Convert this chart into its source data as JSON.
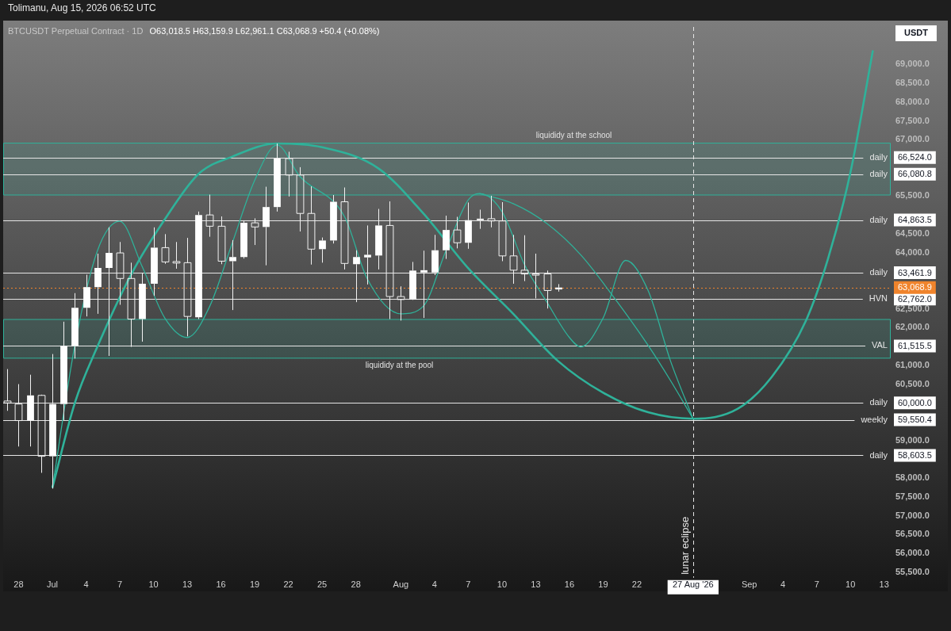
{
  "chart_data": {
    "type": "candlestick",
    "title": "BTCUSDT Perpetual Contract · 1D",
    "subtitle": "O63,018.5 H63,159.9 L62,961.1 C63,068.9 +50.4 (+0.08%)",
    "ylabel": "USDT",
    "annotations": [
      "Tolimanu, Aug 15, 2026 06:52 UTC",
      "66,524.0",
      "66,080.8",
      "64,863.5",
      "63,461.9",
      "62,762.0",
      "61,515.5",
      "60,000.0",
      "59,550.4",
      "58,603.5",
      "63,068.9"
    ],
    "x": [
      "2026-06-27",
      "2026-06-28",
      "2026-06-29",
      "2026-06-30",
      "2026-07-01",
      "2026-07-02",
      "2026-07-03",
      "2026-07-04",
      "2026-07-05",
      "2026-07-06",
      "2026-07-07",
      "2026-07-08",
      "2026-07-09",
      "2026-07-10",
      "2026-07-11",
      "2026-07-12",
      "2026-07-13",
      "2026-07-14",
      "2026-07-15",
      "2026-07-16",
      "2026-07-17",
      "2026-07-18",
      "2026-07-19",
      "2026-07-20",
      "2026-07-21",
      "2026-07-22",
      "2026-07-23",
      "2026-07-24",
      "2026-07-25",
      "2026-07-26",
      "2026-07-27",
      "2026-07-28",
      "2026-07-29",
      "2026-07-30",
      "2026-07-31",
      "2026-08-01",
      "2026-08-02",
      "2026-08-03",
      "2026-08-04",
      "2026-08-05",
      "2026-08-06",
      "2026-08-07",
      "2026-08-08",
      "2026-08-09",
      "2026-08-10",
      "2026-08-11",
      "2026-08-12",
      "2026-08-13",
      "2026-08-14",
      "2026-08-15"
    ],
    "ohlc": [
      [
        60050,
        60900,
        59790,
        60000
      ],
      [
        59970,
        60500,
        58840,
        59530
      ],
      [
        59530,
        60750,
        58840,
        60200
      ],
      [
        60200,
        60220,
        58140,
        58580
      ],
      [
        58580,
        61300,
        57720,
        59970
      ],
      [
        59970,
        62160,
        59540,
        61510
      ],
      [
        61510,
        62920,
        61180,
        62530
      ],
      [
        62530,
        63410,
        62300,
        63080
      ],
      [
        63080,
        63970,
        62370,
        63590
      ],
      [
        63590,
        64670,
        61250,
        63990
      ],
      [
        63990,
        64280,
        62610,
        63310
      ],
      [
        63310,
        63730,
        61490,
        62230
      ],
      [
        62230,
        63450,
        61630,
        63170
      ],
      [
        63170,
        64670,
        62850,
        64130
      ],
      [
        64130,
        64490,
        63700,
        63750
      ],
      [
        63760,
        64280,
        63570,
        63720
      ],
      [
        63730,
        64390,
        61770,
        62300
      ],
      [
        62280,
        65090,
        62230,
        65000
      ],
      [
        65000,
        65540,
        64420,
        64700
      ],
      [
        64700,
        64960,
        63690,
        63770
      ],
      [
        63770,
        64330,
        62470,
        63880
      ],
      [
        63880,
        64840,
        63840,
        64790
      ],
      [
        64790,
        64910,
        64200,
        64680
      ],
      [
        64680,
        65750,
        63660,
        65210
      ],
      [
        65210,
        66900,
        65090,
        66500
      ],
      [
        66500,
        66680,
        65490,
        66060
      ],
      [
        66060,
        66270,
        64560,
        65040
      ],
      [
        65040,
        65760,
        63680,
        64090
      ],
      [
        64090,
        64400,
        63730,
        64320
      ],
      [
        64320,
        65530,
        64240,
        65350
      ],
      [
        65350,
        65730,
        63550,
        63710
      ],
      [
        63690,
        64060,
        62680,
        63880
      ],
      [
        63870,
        64720,
        63150,
        63940
      ],
      [
        63920,
        65160,
        63550,
        64720
      ],
      [
        64720,
        65360,
        62230,
        62830
      ],
      [
        62830,
        63100,
        62190,
        62750
      ],
      [
        62750,
        63750,
        62740,
        63520
      ],
      [
        63470,
        64050,
        62260,
        63530
      ],
      [
        63470,
        64470,
        63400,
        64060
      ],
      [
        64060,
        64980,
        63830,
        64600
      ],
      [
        64600,
        64950,
        64110,
        64260
      ],
      [
        64260,
        65330,
        64100,
        64860
      ],
      [
        64860,
        65140,
        64630,
        64900
      ],
      [
        64900,
        65510,
        64670,
        64840
      ],
      [
        64840,
        65340,
        63770,
        63910
      ],
      [
        63910,
        64470,
        63170,
        63530
      ],
      [
        63530,
        64460,
        63240,
        63430
      ],
      [
        63430,
        63970,
        62780,
        63410
      ],
      [
        63430,
        63520,
        62510,
        62990
      ],
      [
        63018.5,
        63159.9,
        62961.1,
        63068.9
      ]
    ],
    "series": [
      {
        "type": "line",
        "color": "#2fb29a",
        "x": [
          "2026-07-01",
          "2026-07-03",
          "2026-07-05",
          "2026-07-08",
          "2026-07-11",
          "2026-07-14",
          "2026-07-17",
          "2026-07-21",
          "2026-07-25",
          "2026-07-30",
          "2026-08-03",
          "2026-08-07",
          "2026-08-11",
          "2026-08-15",
          "2026-08-19",
          "2026-08-23",
          "2026-08-27",
          "2026-08-31",
          "2026-09-03",
          "2026-09-06",
          "2026-09-08",
          "2026-09-10",
          "2026-09-12"
        ],
        "values": [
          57740,
          60000,
          61490,
          63410,
          64880,
          66090,
          66550,
          66900,
          66800,
          66240,
          65040,
          63580,
          62370,
          61110,
          60270,
          59750,
          59580,
          59850,
          60690,
          62160,
          63830,
          66130,
          69380
        ]
      },
      {
        "type": "line",
        "color": "#2fb29a",
        "x": [
          "2026-07-01",
          "2026-07-03",
          "2026-07-05",
          "2026-07-07",
          "2026-07-09",
          "2026-07-11",
          "2026-07-13",
          "2026-07-15",
          "2026-07-17",
          "2026-07-19",
          "2026-07-21",
          "2026-07-23",
          "2026-07-27",
          "2026-07-29",
          "2026-08-01",
          "2026-08-03",
          "2026-08-05",
          "2026-08-07",
          "2026-08-08",
          "2026-08-10",
          "2026-08-12",
          "2026-08-14",
          "2026-08-16",
          "2026-08-17",
          "2026-08-19",
          "2026-08-21",
          "2026-08-23",
          "2026-08-25",
          "2026-08-27"
        ],
        "values": [
          57740,
          61530,
          64040,
          64830,
          63620,
          62260,
          61740,
          62570,
          64250,
          65920,
          66860,
          66030,
          64950,
          63310,
          62370,
          62570,
          64040,
          65400,
          65570,
          65090,
          63680,
          62680,
          61740,
          61490,
          62260,
          63790,
          62990,
          61110,
          59580
        ]
      },
      {
        "type": "line",
        "color": "#2fb29a",
        "x": [
          "2026-08-08",
          "2026-08-11",
          "2026-08-14",
          "2026-08-17",
          "2026-08-20",
          "2026-08-23",
          "2026-08-25",
          "2026-08-27"
        ],
        "values": [
          65570,
          65300,
          64770,
          63940,
          62790,
          61530,
          60590,
          59580
        ]
      }
    ],
    "xlim": [
      "2026-06-26T15:00",
      "2026-09-13T14:00"
    ],
    "xticks": [
      {
        "value": "2026-06-28",
        "label": "28"
      },
      {
        "value": "2026-07-01",
        "label": "Jul"
      },
      {
        "value": "2026-07-04",
        "label": "4"
      },
      {
        "value": "2026-07-07",
        "label": "7"
      },
      {
        "value": "2026-07-10",
        "label": "10"
      },
      {
        "value": "2026-07-13",
        "label": "13"
      },
      {
        "value": "2026-07-16",
        "label": "16"
      },
      {
        "value": "2026-07-19",
        "label": "19"
      },
      {
        "value": "2026-07-22",
        "label": "22"
      },
      {
        "value": "2026-07-25",
        "label": "25"
      },
      {
        "value": "2026-07-28",
        "label": "28"
      },
      {
        "value": "2026-08-01",
        "label": "Aug"
      },
      {
        "value": "2026-08-04",
        "label": "4"
      },
      {
        "value": "2026-08-07",
        "label": "7"
      },
      {
        "value": "2026-08-10",
        "label": "10"
      },
      {
        "value": "2026-08-13",
        "label": "13"
      },
      {
        "value": "2026-08-16",
        "label": "16"
      },
      {
        "value": "2026-08-19",
        "label": "19"
      },
      {
        "value": "2026-08-22",
        "label": "22"
      },
      {
        "value": "2026-08-27",
        "label": "27 Aug '26"
      },
      {
        "value": "2026-09-01",
        "label": "Sep"
      },
      {
        "value": "2026-09-04",
        "label": "4"
      },
      {
        "value": "2026-09-07",
        "label": "7"
      },
      {
        "value": "2026-09-10",
        "label": "10"
      },
      {
        "value": "2026-09-13",
        "label": "13"
      }
    ],
    "ylim": [
      55350,
      70000
    ],
    "yticks": [
      {
        "value": 55500,
        "label": "55,500.0"
      },
      {
        "value": 56000,
        "label": "56,000.0"
      },
      {
        "value": 56500,
        "label": "56,500.0"
      },
      {
        "value": 57000,
        "label": "57,000.0"
      },
      {
        "value": 57500,
        "label": "57,500.0"
      },
      {
        "value": 58000,
        "label": "58,000.0"
      },
      {
        "value": 59000,
        "label": "59,000.0"
      },
      {
        "value": 60500,
        "label": "60,500.0"
      },
      {
        "value": 61000,
        "label": "61,000.0"
      },
      {
        "value": 62000,
        "label": "62,000.0"
      },
      {
        "value": 62500,
        "label": "62,500.0"
      },
      {
        "value": 64000,
        "label": "64,000.0"
      },
      {
        "value": 64500,
        "label": "64,500.0"
      },
      {
        "value": 65500,
        "label": "65,500.0"
      },
      {
        "value": 67000,
        "label": "67,000.0"
      },
      {
        "value": 67500,
        "label": "67,500.0"
      },
      {
        "value": 68000,
        "label": "68,000.0"
      },
      {
        "value": 68500,
        "label": "68,500.0"
      },
      {
        "value": 69000,
        "label": "69,000.0"
      }
    ],
    "ref_lines": [
      {
        "axis": "y",
        "value": 66524.0,
        "label": "daily",
        "color": "#e6e6e6"
      },
      {
        "axis": "y",
        "value": 66080.8,
        "label": "daily",
        "color": "#e6e6e6"
      },
      {
        "axis": "y",
        "value": 64863.5,
        "label": "daily",
        "color": "#e6e6e6"
      },
      {
        "axis": "y",
        "value": 63461.9,
        "label": "daily",
        "color": "#e6e6e6"
      },
      {
        "axis": "y",
        "value": 62762.0,
        "label": "HVN",
        "color": "#e6e6e6"
      },
      {
        "axis": "y",
        "value": 61515.5,
        "label": "VAL",
        "color": "#e6e6e6"
      },
      {
        "axis": "y",
        "value": 60000.0,
        "label": "daily",
        "color": "#e6e6e6"
      },
      {
        "axis": "y",
        "value": 59550.4,
        "label": "weekly",
        "color": "#e6e6e6"
      },
      {
        "axis": "y",
        "value": 58603.5,
        "label": "daily",
        "color": "#e6e6e6"
      },
      {
        "axis": "y",
        "value": 63068.9,
        "label": null,
        "color": "#f0842c",
        "line_style": "dotted"
      },
      {
        "axis": "x",
        "value": "2026-08-27",
        "label": "lunar eclipse",
        "color": "#e6e6e6",
        "line_style": "dashed"
      }
    ],
    "bands": [
      {
        "axis": "y",
        "from": 65530,
        "to": 66910,
        "label": "liquididy at the school",
        "color": "#2fb29a"
      },
      {
        "axis": "y",
        "from": 61190,
        "to": 62220,
        "label": "liquididy at the pool",
        "color": "#2fb29a"
      }
    ],
    "legend": false,
    "grid": false,
    "marker": "none"
  }
}
